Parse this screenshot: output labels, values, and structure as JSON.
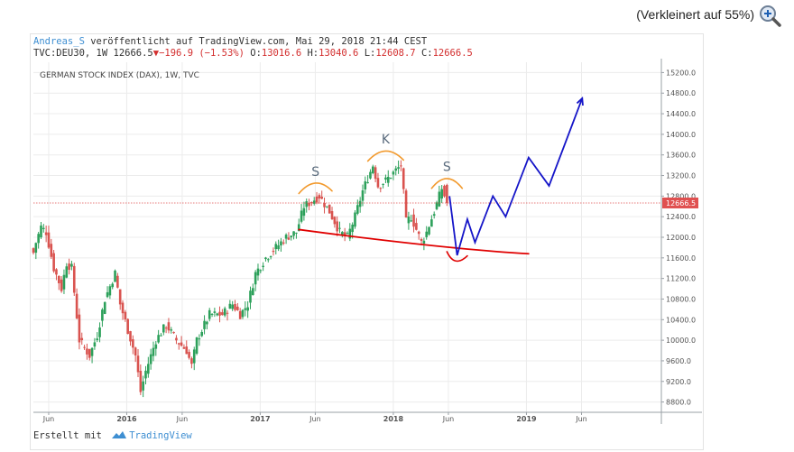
{
  "zoom": {
    "label": "(Verkleinert auf 55%)",
    "icon": "zoom-in-icon"
  },
  "header": {
    "author": "Andreas_S",
    "published": " veröffentlicht auf TradingView.com, Mai 29, 2018 21:44 CEST",
    "symbol": "TVC:DEU30, 1W 12666.5",
    "change": "▼−196.9 (−1.53%)",
    "o_label": " O:",
    "o_value": "13016.6",
    "h_label": " H:",
    "h_value": "13040.6",
    "l_label": " L:",
    "l_value": "12608.7",
    "c_label": " C:",
    "c_value": "12666.5"
  },
  "footer": {
    "created": "Erstellt mit",
    "brand": "TradingView",
    "brand_icon": "tradingview-logo-icon"
  },
  "colors": {
    "up": "#2ca05a",
    "down": "#d9534f",
    "support": "#e00000",
    "shoulders": "#f29a2e",
    "projection": "#1515c8",
    "price_tag": "#e05050"
  },
  "chart_data": {
    "type": "candlestick",
    "title": "GERMAN STOCK INDEX (DAX), 1W, TVC",
    "ylim": [
      8600,
      15400
    ],
    "y_ticks": [
      8800,
      9200,
      9600,
      10000,
      10400,
      10800,
      11200,
      11600,
      12000,
      12400,
      12800,
      13200,
      13600,
      14000,
      14400,
      14800,
      15200
    ],
    "y_tick_labels": [
      "8800.0",
      "9200.0",
      "9600.0",
      "10000.0",
      "10400.0",
      "10800.0",
      "11200.0",
      "11600.0",
      "12000.0",
      "12400.0",
      "12800.0",
      "13200.0",
      "13600.0",
      "14000.0",
      "14400.0",
      "14800.0",
      "15200.0"
    ],
    "x_range": [
      "2015-04-20",
      "2020-01-06"
    ],
    "x_ticks": [
      {
        "date": "2015-06-01",
        "label": "Jun"
      },
      {
        "date": "2016-01-01",
        "label": "2016"
      },
      {
        "date": "2016-06-01",
        "label": "Jun"
      },
      {
        "date": "2017-01-01",
        "label": "2017"
      },
      {
        "date": "2017-06-01",
        "label": "Jun"
      },
      {
        "date": "2018-01-01",
        "label": "2018"
      },
      {
        "date": "2018-06-01",
        "label": "Jun"
      },
      {
        "date": "2019-01-01",
        "label": "2019"
      },
      {
        "date": "2019-06-01",
        "label": "Jun"
      }
    ],
    "last_price": {
      "value": 12666.5,
      "label": "12666.5"
    },
    "anchor_closes": [
      [
        "2015-04-20",
        11700
      ],
      [
        "2015-04-27",
        11900
      ],
      [
        "2015-05-11",
        12200
      ],
      [
        "2015-05-25",
        12100
      ],
      [
        "2015-06-15",
        11400
      ],
      [
        "2015-07-06",
        11000
      ],
      [
        "2015-07-20",
        11500
      ],
      [
        "2015-08-03",
        11400
      ],
      [
        "2015-08-24",
        10000
      ],
      [
        "2015-09-21",
        9700
      ],
      [
        "2015-10-12",
        10100
      ],
      [
        "2015-11-02",
        10800
      ],
      [
        "2015-11-30",
        11300
      ],
      [
        "2015-12-14",
        10700
      ],
      [
        "2016-01-04",
        10200
      ],
      [
        "2016-01-25",
        9700
      ],
      [
        "2016-02-08",
        9000
      ],
      [
        "2016-02-22",
        9400
      ],
      [
        "2016-03-21",
        10000
      ],
      [
        "2016-04-18",
        10300
      ],
      [
        "2016-05-16",
        10000
      ],
      [
        "2016-06-13",
        9800
      ],
      [
        "2016-06-27",
        9500
      ],
      [
        "2016-07-11",
        10000
      ],
      [
        "2016-08-15",
        10500
      ],
      [
        "2016-09-19",
        10500
      ],
      [
        "2016-10-17",
        10700
      ],
      [
        "2016-11-07",
        10500
      ],
      [
        "2016-11-28",
        10700
      ],
      [
        "2016-12-19",
        11300
      ],
      [
        "2017-01-16",
        11600
      ],
      [
        "2017-02-13",
        11800
      ],
      [
        "2017-03-13",
        12000
      ],
      [
        "2017-04-10",
        12100
      ],
      [
        "2017-05-01",
        12600
      ],
      [
        "2017-06-12",
        12800
      ],
      [
        "2017-07-10",
        12500
      ],
      [
        "2017-08-07",
        12100
      ],
      [
        "2017-08-28",
        12000
      ],
      [
        "2017-09-18",
        12400
      ],
      [
        "2017-10-09",
        12900
      ],
      [
        "2017-11-06",
        13400
      ],
      [
        "2017-11-20",
        13000
      ],
      [
        "2017-12-11",
        13100
      ],
      [
        "2018-01-08",
        13300
      ],
      [
        "2018-01-22",
        13400
      ],
      [
        "2018-02-05",
        12300
      ],
      [
        "2018-02-19",
        12400
      ],
      [
        "2018-03-19",
        11900
      ],
      [
        "2018-04-02",
        12100
      ],
      [
        "2018-04-23",
        12500
      ],
      [
        "2018-05-14",
        12950
      ],
      [
        "2018-05-28",
        12666.5
      ]
    ]
  },
  "annotations": {
    "left_shoulder": "S",
    "head": "K",
    "right_shoulder": "S",
    "support_line": [
      [
        "2017-04-17",
        12150
      ],
      [
        "2018-05-14",
        11850
      ],
      [
        "2019-01-07",
        11680
      ]
    ],
    "shoulder_arcs": [
      {
        "from": [
          "2017-04-17",
          12850
        ],
        "to": [
          "2017-07-17",
          12900
        ],
        "peak": 13050
      },
      {
        "from": [
          "2017-10-23",
          13480
        ],
        "to": [
          "2018-01-29",
          13500
        ],
        "peak": 13680
      },
      {
        "from": [
          "2018-04-16",
          12950
        ],
        "to": [
          "2018-07-09",
          12950
        ],
        "peak": 13150
      }
    ],
    "bottom_arc": [
      [
        "2018-05-28",
        11720
      ],
      [
        "2018-06-18",
        11540
      ],
      [
        "2018-07-23",
        11640
      ]
    ],
    "projection": [
      [
        "2018-06-04",
        12800
      ],
      [
        "2018-06-25",
        11650
      ],
      [
        "2018-07-23",
        12350
      ],
      [
        "2018-08-13",
        11900
      ],
      [
        "2018-10-01",
        12800
      ],
      [
        "2018-11-05",
        12400
      ],
      [
        "2019-01-07",
        13550
      ],
      [
        "2019-03-04",
        13000
      ],
      [
        "2019-06-03",
        14700
      ]
    ]
  }
}
